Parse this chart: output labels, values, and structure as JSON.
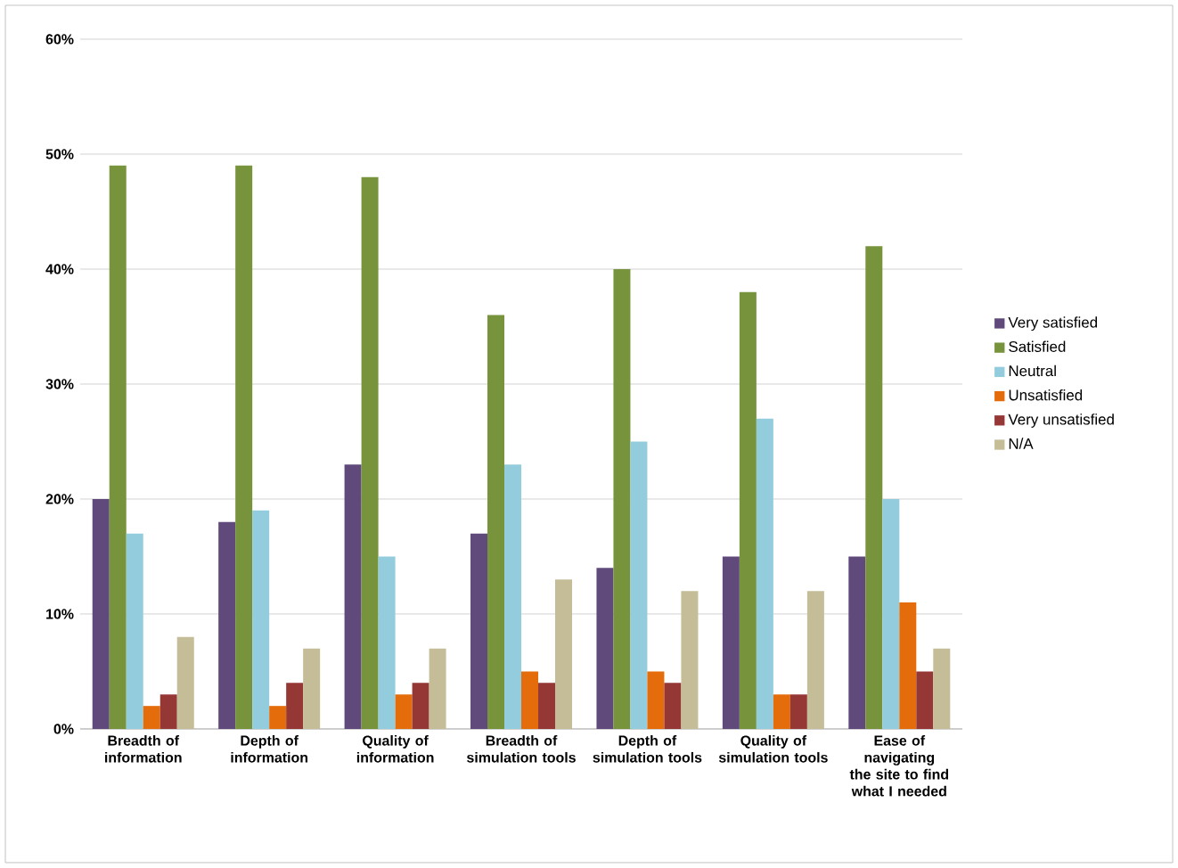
{
  "chart_data": {
    "type": "bar",
    "categories": [
      "Breadth of information",
      "Depth of information",
      "Quality of information",
      "Breadth of simulation tools",
      "Depth of simulation tools",
      "Quality of simulation tools",
      "Ease of navigating the site to find what I needed"
    ],
    "series": [
      {
        "name": "Very satisfied",
        "color": "#604a7b",
        "values": [
          20,
          18,
          23,
          17,
          14,
          15,
          15
        ]
      },
      {
        "name": "Satisfied",
        "color": "#77933c",
        "values": [
          49,
          49,
          48,
          36,
          40,
          38,
          42
        ]
      },
      {
        "name": "Neutral",
        "color": "#93cddd",
        "values": [
          17,
          19,
          15,
          23,
          25,
          27,
          20
        ]
      },
      {
        "name": "Unsatisfied",
        "color": "#e46c0a",
        "values": [
          2,
          2,
          3,
          5,
          5,
          3,
          11
        ]
      },
      {
        "name": "Very unsatisfied",
        "color": "#953735",
        "values": [
          3,
          4,
          4,
          4,
          4,
          3,
          5
        ]
      },
      {
        "name": "N/A",
        "color": "#c4bd97",
        "values": [
          8,
          7,
          7,
          13,
          12,
          12,
          7
        ]
      }
    ],
    "ylim": [
      0,
      60
    ],
    "yticks": [
      {
        "value": 0,
        "label": "0%"
      },
      {
        "value": 10,
        "label": "10%"
      },
      {
        "value": 20,
        "label": "20%"
      },
      {
        "value": 30,
        "label": "30%"
      },
      {
        "value": 40,
        "label": "40%"
      },
      {
        "value": 50,
        "label": "50%"
      },
      {
        "value": 60,
        "label": "60%"
      }
    ],
    "grid": "y",
    "legend": "right"
  }
}
